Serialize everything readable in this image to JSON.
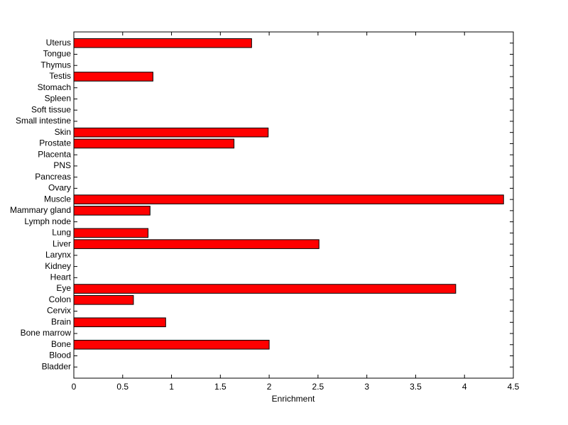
{
  "chart_data": {
    "type": "barh",
    "xlabel": "Enrichment",
    "categories": [
      "Bladder",
      "Blood",
      "Bone",
      "Bone marrow",
      "Brain",
      "Cervix",
      "Colon",
      "Eye",
      "Heart",
      "Kidney",
      "Larynx",
      "Liver",
      "Lung",
      "Lymph node",
      "Mammary gland",
      "Muscle",
      "Ovary",
      "Pancreas",
      "PNS",
      "Placenta",
      "Prostate",
      "Skin",
      "Small intestine",
      "Soft tissue",
      "Spleen",
      "Stomach",
      "Testis",
      "Thymus",
      "Tongue",
      "Uterus"
    ],
    "values": [
      0,
      0,
      2.0,
      0,
      0.94,
      0,
      0.61,
      3.91,
      0,
      0,
      0,
      2.51,
      0.76,
      0,
      0.78,
      4.4,
      0,
      0,
      0,
      0,
      1.64,
      1.99,
      0,
      0,
      0,
      0,
      0.81,
      0,
      0,
      1.82
    ],
    "color": "#ff0000",
    "xlim": [
      0,
      4.5
    ],
    "xticks": [
      0,
      0.5,
      1,
      1.5,
      2,
      2.5,
      3,
      3.5,
      4,
      4.5
    ]
  }
}
